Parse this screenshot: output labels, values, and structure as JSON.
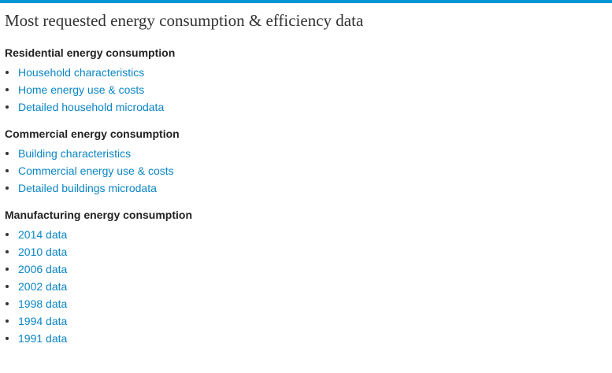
{
  "page": {
    "title": "Most requested energy consumption & efficiency data"
  },
  "sections": [
    {
      "heading": "Residential energy consumption",
      "links": [
        "Household characteristics",
        "Home energy use & costs",
        "Detailed household microdata"
      ]
    },
    {
      "heading": "Commercial energy consumption",
      "links": [
        "Building characteristics",
        "Commercial energy use & costs",
        "Detailed buildings microdata"
      ]
    },
    {
      "heading": "Manufacturing energy consumption",
      "links": [
        "2014 data",
        "2010 data",
        "2006 data",
        "2002 data",
        "1998 data",
        "1994 data",
        "1991 data"
      ]
    }
  ],
  "colors": {
    "accent_bar": "#0096d6",
    "link": "#0a85c4",
    "heading": "#222222"
  }
}
